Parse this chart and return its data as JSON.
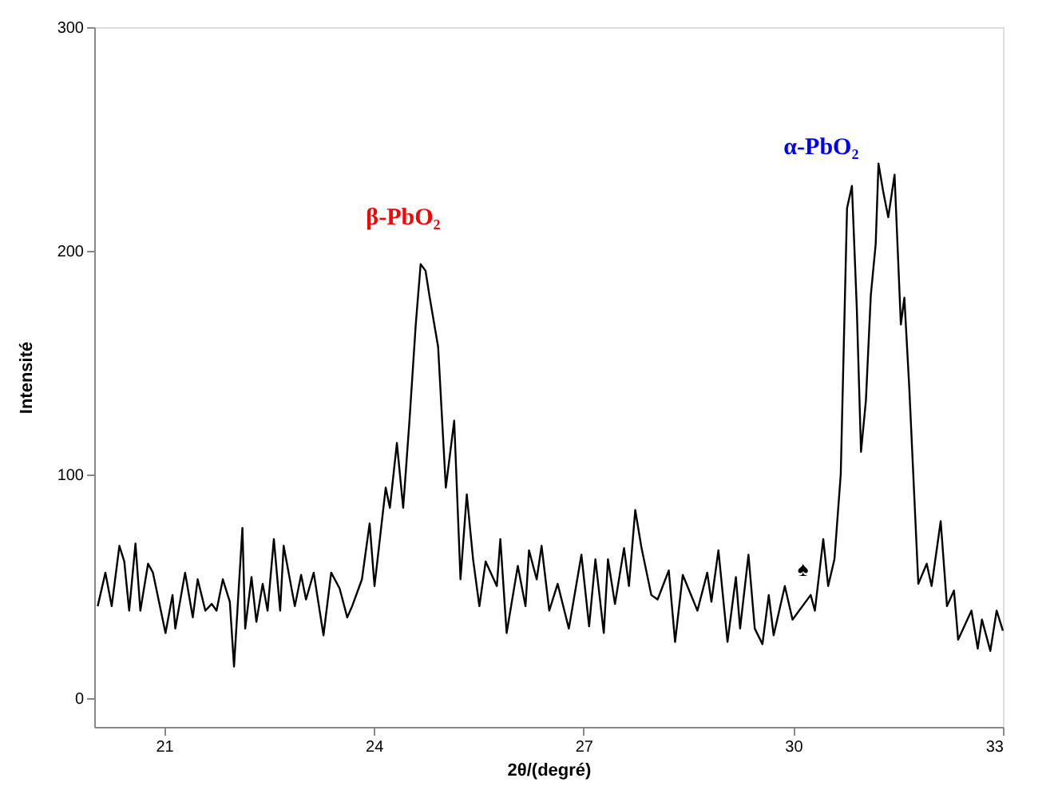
{
  "chart_data": {
    "type": "line",
    "xlabel": "2θ/(degré)",
    "ylabel": "Intensité",
    "xlim": [
      20,
      33
    ],
    "xticks": [
      21,
      24,
      27,
      30,
      33
    ],
    "ylim": [
      -13,
      300
    ],
    "yticks": [
      0,
      100,
      200,
      300
    ],
    "grid": false,
    "marker": "none",
    "line_style": "solid",
    "series": [
      {
        "color": "#000000",
        "x": [
          20.05,
          20.16,
          20.25,
          20.36,
          20.43,
          20.5,
          20.59,
          20.66,
          20.77,
          20.84,
          21.02,
          21.12,
          21.16,
          21.3,
          21.41,
          21.48,
          21.59,
          21.68,
          21.75,
          21.84,
          21.94,
          22.0,
          22.12,
          22.16,
          22.25,
          22.32,
          22.41,
          22.48,
          22.57,
          22.66,
          22.71,
          22.87,
          22.96,
          23.03,
          23.14,
          23.28,
          23.39,
          23.51,
          23.62,
          23.69,
          23.83,
          23.94,
          24.01,
          24.17,
          24.23,
          24.33,
          24.42,
          24.51,
          24.6,
          24.67,
          24.74,
          24.8,
          24.92,
          25.03,
          25.15,
          25.24,
          25.33,
          25.42,
          25.51,
          25.6,
          25.76,
          25.81,
          25.9,
          26.06,
          26.17,
          26.22,
          26.33,
          26.4,
          26.51,
          26.63,
          26.79,
          26.97,
          27.08,
          27.17,
          27.29,
          27.35,
          27.45,
          27.58,
          27.65,
          27.74,
          27.83,
          27.97,
          28.06,
          28.22,
          28.31,
          28.42,
          28.63,
          28.77,
          28.83,
          28.93,
          29.06,
          29.18,
          29.24,
          29.36,
          29.45,
          29.56,
          29.65,
          29.72,
          29.88,
          29.99,
          30.25,
          30.31,
          30.43,
          30.5,
          30.59,
          30.68,
          30.77,
          30.84,
          30.91,
          30.97,
          31.04,
          31.11,
          31.18,
          31.22,
          31.29,
          31.36,
          31.45,
          31.54,
          31.59,
          31.66,
          31.79,
          31.91,
          31.98,
          32.11,
          32.2,
          32.3,
          32.36,
          32.55,
          32.64,
          32.7,
          32.82,
          32.91,
          33.0
        ],
        "values": [
          41,
          56,
          41,
          68,
          61,
          39,
          69,
          39,
          60,
          56,
          29,
          46,
          31,
          56,
          36,
          53,
          39,
          42,
          39,
          53,
          43,
          14,
          76,
          31,
          54,
          34,
          51,
          39,
          71,
          39,
          68,
          41,
          55,
          44,
          56,
          28,
          56,
          49,
          36,
          41,
          53,
          78,
          50,
          94,
          85,
          114,
          85,
          124,
          167,
          194,
          191,
          179,
          157,
          94,
          124,
          53,
          91,
          62,
          41,
          61,
          50,
          71,
          29,
          59,
          41,
          66,
          53,
          68,
          39,
          51,
          31,
          64,
          32,
          62,
          29,
          62,
          42,
          67,
          50,
          84,
          67,
          46,
          44,
          57,
          25,
          55,
          39,
          56,
          43,
          66,
          25,
          54,
          31,
          64,
          31,
          24,
          46,
          28,
          50,
          35,
          46,
          39,
          71,
          50,
          62,
          100,
          219,
          229,
          174,
          110,
          133,
          180,
          203,
          239,
          226,
          215,
          234,
          167,
          179,
          139,
          51,
          60,
          50,
          79,
          41,
          48,
          26,
          39,
          22,
          35,
          21,
          39,
          30
        ]
      }
    ],
    "annotations": [
      "β-PbO₂",
      "α-PbO₂",
      "♠"
    ]
  }
}
